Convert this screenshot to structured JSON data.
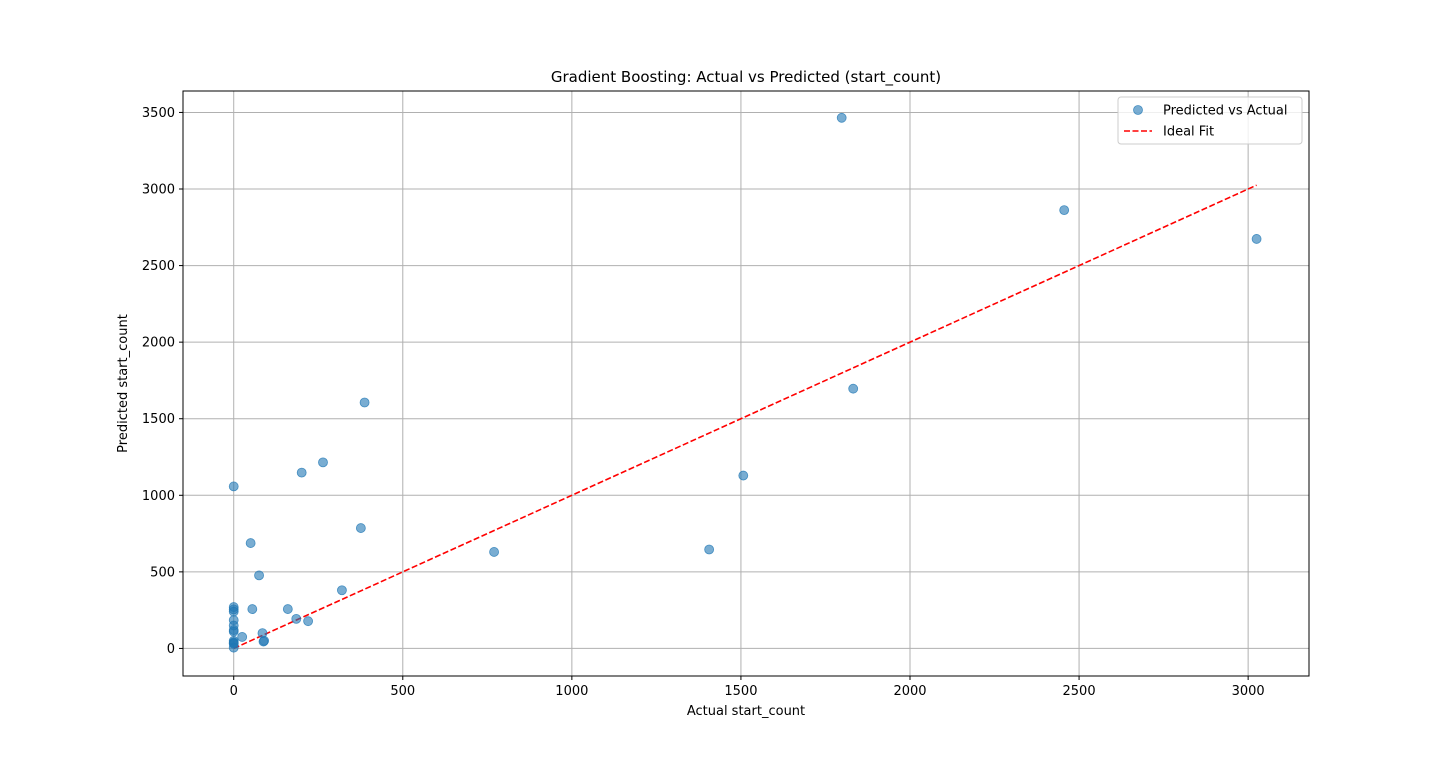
{
  "chart_data": {
    "type": "scatter",
    "title": "Gradient Boosting: Actual vs Predicted (start_count)",
    "xlabel": "Actual start_count",
    "ylabel": "Predicted start_count",
    "xlim": [
      -150,
      3180
    ],
    "ylim": [
      -180,
      3640
    ],
    "xticks": [
      0,
      500,
      1000,
      1500,
      2000,
      2500,
      3000
    ],
    "yticks": [
      0,
      500,
      1000,
      1500,
      2000,
      2500,
      3000,
      3500
    ],
    "grid": true,
    "legend_position": "top-right",
    "series": [
      {
        "name": "Predicted vs Actual",
        "kind": "scatter",
        "color": "#1f77b4",
        "x": [
          1798,
          2456,
          3025,
          1832,
          387,
          264,
          201,
          0,
          1507,
          376,
          1406,
          770,
          50,
          75,
          320,
          160,
          185,
          220,
          55,
          85,
          90,
          88,
          25,
          0,
          0,
          0,
          0,
          0,
          0,
          0,
          0,
          0,
          0,
          0,
          0
        ],
        "y": [
          3465,
          2862,
          2674,
          1696,
          1606,
          1215,
          1148,
          1058,
          1129,
          786,
          646,
          630,
          688,
          477,
          380,
          257,
          193,
          178,
          257,
          100,
          50,
          45,
          75,
          270,
          255,
          240,
          185,
          150,
          120,
          110,
          50,
          40,
          35,
          30,
          5
        ]
      },
      {
        "name": "Ideal Fit",
        "kind": "line",
        "color": "#ff0000",
        "style": "dashed",
        "x": [
          0,
          3025
        ],
        "y": [
          0,
          3025
        ]
      }
    ]
  }
}
